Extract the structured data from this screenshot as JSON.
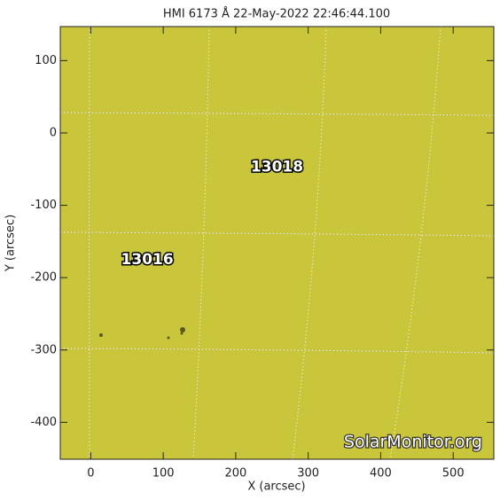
{
  "chart_data": {
    "type": "image",
    "title": "HMI 6173 Å 22-May-2022 22:46:44.100",
    "x_label": "X (arcsec)",
    "y_label": "Y (arcsec)",
    "xlim": [
      -42,
      556
    ],
    "ylim": [
      -451,
      147
    ],
    "xticks": [
      0,
      100,
      200,
      300,
      400,
      500
    ],
    "yticks": [
      100,
      0,
      -100,
      -200,
      -300,
      -400
    ],
    "color": "#c9c63c",
    "annotations": [
      {
        "text": "13018",
        "x": 257,
        "y": -47
      },
      {
        "text": "13016",
        "x": 78,
        "y": -175
      }
    ],
    "watermark": "SolarMonitor.org"
  }
}
